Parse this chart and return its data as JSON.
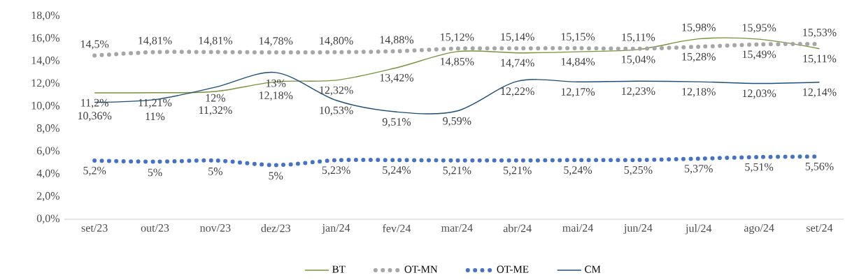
{
  "chart_data": {
    "type": "line",
    "categories": [
      "set/23",
      "out/23",
      "nov/23",
      "dez/23",
      "jan/24",
      "fev/24",
      "mar/24",
      "abr/24",
      "mai/24",
      "jun/24",
      "jul/24",
      "ago/24",
      "set/24"
    ],
    "series": [
      {
        "name": "BT",
        "color": "#77933c",
        "line_style": "solid",
        "values": [
          11.2,
          11.21,
          11.32,
          12.18,
          12.32,
          13.42,
          14.85,
          14.74,
          14.84,
          15.04,
          15.98,
          15.95,
          15.11
        ],
        "value_labels": [
          "11,2%",
          "11,21%",
          "11,32%",
          "12,18%",
          "12,32%",
          "13,42%",
          "14,85%",
          "14,74%",
          "14,84%",
          "15,04%",
          "15,98%",
          "15,95%",
          "15,11%"
        ]
      },
      {
        "name": "OT-MN",
        "color": "#a6a6a6",
        "line_style": "dotted",
        "values": [
          14.5,
          14.81,
          14.81,
          14.78,
          14.8,
          14.88,
          15.12,
          15.14,
          15.15,
          15.11,
          15.28,
          15.49,
          15.53
        ],
        "value_labels": [
          "14,5%",
          "14,81%",
          "14,81%",
          "14,78%",
          "14,80%",
          "14,88%",
          "15,12%",
          "15,14%",
          "15,15%",
          "15,11%",
          "15,28%",
          "15,49%",
          "15,53%"
        ]
      },
      {
        "name": "OT-ME",
        "color": "#4472c4",
        "line_style": "dotted",
        "values": [
          5.2,
          5.1,
          5.2,
          4.8,
          5.23,
          5.24,
          5.21,
          5.21,
          5.24,
          5.25,
          5.37,
          5.51,
          5.56
        ],
        "value_labels": [
          "5,2%",
          "5%",
          "5%",
          "5%",
          "5,23%",
          "5,24%",
          "5,21%",
          "5,21%",
          "5,24%",
          "5,25%",
          "5,37%",
          "5,51%",
          "5,56%"
        ]
      },
      {
        "name": "CM",
        "color": "#1f4e79",
        "line_style": "solid",
        "values": [
          10.36,
          10.6,
          11.7,
          13,
          10.53,
          9.51,
          9.59,
          12.22,
          12.17,
          12.23,
          12.18,
          12.03,
          12.14
        ],
        "value_labels": [
          "10,36%",
          "11%",
          "12%",
          "13%",
          "10,53%",
          "9,51%",
          "9,59%",
          "12,22%",
          "12,17%",
          "12,23%",
          "12,18%",
          "12,03%",
          "12,14%"
        ]
      }
    ],
    "ylim": [
      0,
      18
    ],
    "yticks": [
      {
        "value": 0,
        "label": "0,0%"
      },
      {
        "value": 2,
        "label": "2,0%"
      },
      {
        "value": 4,
        "label": "4,0%"
      },
      {
        "value": 6,
        "label": "6,0%"
      },
      {
        "value": 8,
        "label": "8,0%"
      },
      {
        "value": 10,
        "label": "10,0%"
      },
      {
        "value": 12,
        "label": "12,0%"
      },
      {
        "value": 14,
        "label": "14,0%"
      },
      {
        "value": 16,
        "label": "16,0%"
      },
      {
        "value": 18,
        "label": "18,0%"
      }
    ],
    "legend": "bottom",
    "marker": "none"
  }
}
